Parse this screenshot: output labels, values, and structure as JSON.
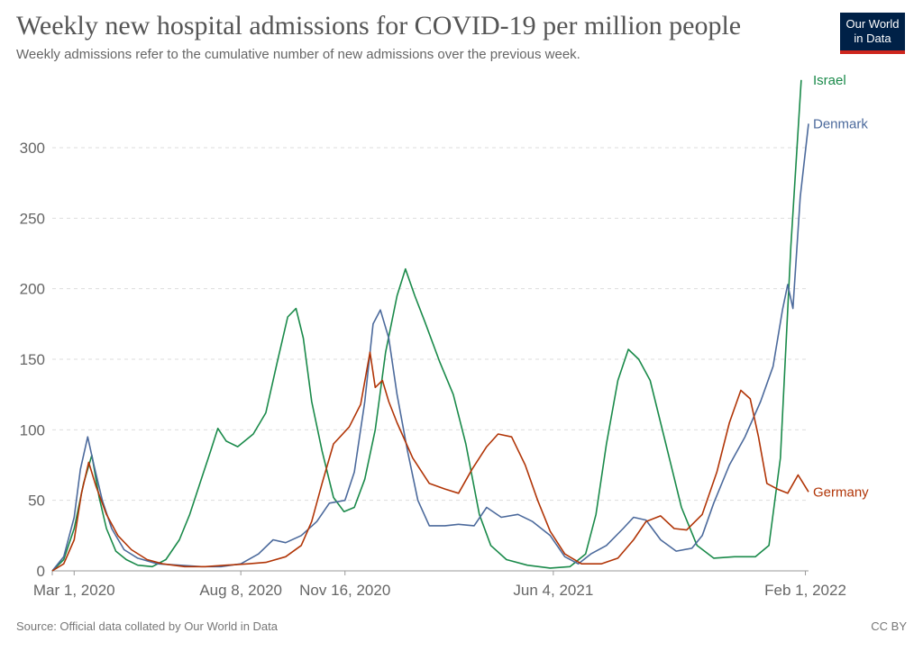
{
  "header": {
    "title": "Weekly new hospital admissions for COVID-19 per million people",
    "subtitle": "Weekly admissions refer to the cumulative number of new admissions over the previous week."
  },
  "logo": {
    "line1": "Our World",
    "line2": "in Data",
    "bg_color": "#002147",
    "accent_color": "#ce261e"
  },
  "footer": {
    "source": "Source: Official data collated by Our World in Data",
    "license": "CC BY"
  },
  "chart_data": {
    "type": "line",
    "title": "Weekly new hospital admissions for COVID-19 per million people",
    "subtitle": "Weekly admissions refer to the cumulative number of new admissions over the previous week.",
    "x_axis": {
      "type": "date",
      "range": [
        "2020-02-09",
        "2022-02-04"
      ],
      "ticks": [
        {
          "date": "2020-03-01",
          "label": "Mar 1, 2020"
        },
        {
          "date": "2020-08-08",
          "label": "Aug 8, 2020"
        },
        {
          "date": "2020-11-16",
          "label": "Nov 16, 2020"
        },
        {
          "date": "2021-06-04",
          "label": "Jun 4, 2021"
        },
        {
          "date": "2022-02-01",
          "label": "Feb 1, 2022"
        }
      ]
    },
    "y_axis": {
      "range": [
        0,
        350
      ],
      "ticks": [
        0,
        50,
        100,
        150,
        200,
        250,
        300
      ],
      "grid": true
    },
    "series": [
      {
        "name": "Israel",
        "color": "#1a8a4a",
        "points": [
          [
            "2020-02-09",
            0
          ],
          [
            "2020-02-20",
            8
          ],
          [
            "2020-03-01",
            30
          ],
          [
            "2020-03-10",
            62
          ],
          [
            "2020-03-18",
            82
          ],
          [
            "2020-03-25",
            52
          ],
          [
            "2020-04-01",
            30
          ],
          [
            "2020-04-10",
            14
          ],
          [
            "2020-04-20",
            8
          ],
          [
            "2020-05-01",
            4
          ],
          [
            "2020-05-15",
            3
          ],
          [
            "2020-05-28",
            8
          ],
          [
            "2020-06-10",
            22
          ],
          [
            "2020-06-20",
            40
          ],
          [
            "2020-07-01",
            65
          ],
          [
            "2020-07-10",
            85
          ],
          [
            "2020-07-17",
            101
          ],
          [
            "2020-07-25",
            92
          ],
          [
            "2020-08-05",
            88
          ],
          [
            "2020-08-20",
            97
          ],
          [
            "2020-09-01",
            112
          ],
          [
            "2020-09-12",
            148
          ],
          [
            "2020-09-22",
            180
          ],
          [
            "2020-09-30",
            186
          ],
          [
            "2020-10-07",
            165
          ],
          [
            "2020-10-15",
            120
          ],
          [
            "2020-10-25",
            85
          ],
          [
            "2020-11-05",
            52
          ],
          [
            "2020-11-15",
            42
          ],
          [
            "2020-11-25",
            45
          ],
          [
            "2020-12-05",
            65
          ],
          [
            "2020-12-15",
            100
          ],
          [
            "2020-12-25",
            155
          ],
          [
            "2021-01-05",
            195
          ],
          [
            "2021-01-13",
            214
          ],
          [
            "2021-01-22",
            195
          ],
          [
            "2021-02-01",
            176
          ],
          [
            "2021-02-15",
            148
          ],
          [
            "2021-02-28",
            125
          ],
          [
            "2021-03-12",
            90
          ],
          [
            "2021-03-25",
            40
          ],
          [
            "2021-04-05",
            18
          ],
          [
            "2021-04-20",
            8
          ],
          [
            "2021-05-10",
            4
          ],
          [
            "2021-06-01",
            2
          ],
          [
            "2021-06-20",
            3
          ],
          [
            "2021-07-05",
            12
          ],
          [
            "2021-07-15",
            40
          ],
          [
            "2021-07-25",
            90
          ],
          [
            "2021-08-05",
            135
          ],
          [
            "2021-08-15",
            157
          ],
          [
            "2021-08-25",
            150
          ],
          [
            "2021-09-05",
            135
          ],
          [
            "2021-09-20",
            90
          ],
          [
            "2021-10-05",
            45
          ],
          [
            "2021-10-20",
            18
          ],
          [
            "2021-11-05",
            9
          ],
          [
            "2021-11-25",
            10
          ],
          [
            "2021-12-15",
            10
          ],
          [
            "2021-12-28",
            18
          ],
          [
            "2022-01-08",
            80
          ],
          [
            "2022-01-18",
            230
          ],
          [
            "2022-01-28",
            348
          ]
        ]
      },
      {
        "name": "Denmark",
        "color": "#4c6a9c",
        "points": [
          [
            "2020-02-09",
            0
          ],
          [
            "2020-02-20",
            10
          ],
          [
            "2020-03-01",
            38
          ],
          [
            "2020-03-07",
            72
          ],
          [
            "2020-03-14",
            95
          ],
          [
            "2020-03-20",
            75
          ],
          [
            "2020-03-28",
            50
          ],
          [
            "2020-04-06",
            30
          ],
          [
            "2020-04-18",
            15
          ],
          [
            "2020-05-01",
            9
          ],
          [
            "2020-05-20",
            5
          ],
          [
            "2020-06-10",
            4
          ],
          [
            "2020-07-01",
            3
          ],
          [
            "2020-07-20",
            3
          ],
          [
            "2020-08-08",
            5
          ],
          [
            "2020-08-25",
            12
          ],
          [
            "2020-09-08",
            22
          ],
          [
            "2020-09-20",
            20
          ],
          [
            "2020-10-05",
            25
          ],
          [
            "2020-10-20",
            35
          ],
          [
            "2020-11-01",
            48
          ],
          [
            "2020-11-16",
            50
          ],
          [
            "2020-11-25",
            70
          ],
          [
            "2020-12-05",
            120
          ],
          [
            "2020-12-13",
            175
          ],
          [
            "2020-12-20",
            185
          ],
          [
            "2020-12-28",
            165
          ],
          [
            "2021-01-05",
            125
          ],
          [
            "2021-01-15",
            85
          ],
          [
            "2021-01-25",
            50
          ],
          [
            "2021-02-05",
            32
          ],
          [
            "2021-02-20",
            32
          ],
          [
            "2021-03-05",
            33
          ],
          [
            "2021-03-20",
            32
          ],
          [
            "2021-04-01",
            45
          ],
          [
            "2021-04-15",
            38
          ],
          [
            "2021-05-01",
            40
          ],
          [
            "2021-05-15",
            35
          ],
          [
            "2021-06-01",
            25
          ],
          [
            "2021-06-15",
            10
          ],
          [
            "2021-06-28",
            5
          ],
          [
            "2021-07-10",
            12
          ],
          [
            "2021-07-25",
            18
          ],
          [
            "2021-08-10",
            30
          ],
          [
            "2021-08-20",
            38
          ],
          [
            "2021-09-01",
            36
          ],
          [
            "2021-09-15",
            22
          ],
          [
            "2021-09-30",
            14
          ],
          [
            "2021-10-15",
            16
          ],
          [
            "2021-10-25",
            25
          ],
          [
            "2021-11-05",
            48
          ],
          [
            "2021-11-20",
            75
          ],
          [
            "2021-12-05",
            95
          ],
          [
            "2021-12-20",
            120
          ],
          [
            "2022-01-01",
            145
          ],
          [
            "2022-01-10",
            185
          ],
          [
            "2022-01-15",
            203
          ],
          [
            "2022-01-20",
            186
          ],
          [
            "2022-01-27",
            265
          ],
          [
            "2022-02-04",
            317
          ]
        ]
      },
      {
        "name": "Germany",
        "color": "#b13507",
        "points": [
          [
            "2020-02-09",
            0
          ],
          [
            "2020-02-20",
            5
          ],
          [
            "2020-03-01",
            22
          ],
          [
            "2020-03-08",
            55
          ],
          [
            "2020-03-15",
            77
          ],
          [
            "2020-03-22",
            60
          ],
          [
            "2020-04-01",
            40
          ],
          [
            "2020-04-12",
            25
          ],
          [
            "2020-04-25",
            15
          ],
          [
            "2020-05-10",
            8
          ],
          [
            "2020-05-25",
            5
          ],
          [
            "2020-06-15",
            3
          ],
          [
            "2020-07-05",
            3
          ],
          [
            "2020-07-25",
            4
          ],
          [
            "2020-08-15",
            5
          ],
          [
            "2020-09-01",
            6
          ],
          [
            "2020-09-20",
            10
          ],
          [
            "2020-10-05",
            18
          ],
          [
            "2020-10-15",
            35
          ],
          [
            "2020-10-25",
            62
          ],
          [
            "2020-11-05",
            90
          ],
          [
            "2020-11-20",
            102
          ],
          [
            "2020-12-01",
            118
          ],
          [
            "2020-12-10",
            155
          ],
          [
            "2020-12-15",
            130
          ],
          [
            "2020-12-22",
            135
          ],
          [
            "2020-12-28",
            120
          ],
          [
            "2021-01-05",
            105
          ],
          [
            "2021-01-20",
            80
          ],
          [
            "2021-02-05",
            62
          ],
          [
            "2021-02-20",
            58
          ],
          [
            "2021-03-05",
            55
          ],
          [
            "2021-03-18",
            72
          ],
          [
            "2021-04-01",
            88
          ],
          [
            "2021-04-12",
            97
          ],
          [
            "2021-04-25",
            95
          ],
          [
            "2021-05-08",
            75
          ],
          [
            "2021-05-20",
            50
          ],
          [
            "2021-06-01",
            28
          ],
          [
            "2021-06-15",
            12
          ],
          [
            "2021-07-01",
            5
          ],
          [
            "2021-07-20",
            5
          ],
          [
            "2021-08-05",
            9
          ],
          [
            "2021-08-20",
            22
          ],
          [
            "2021-09-01",
            35
          ],
          [
            "2021-09-15",
            39
          ],
          [
            "2021-09-28",
            30
          ],
          [
            "2021-10-10",
            29
          ],
          [
            "2021-10-25",
            40
          ],
          [
            "2021-11-08",
            70
          ],
          [
            "2021-11-20",
            105
          ],
          [
            "2021-12-01",
            128
          ],
          [
            "2021-12-10",
            122
          ],
          [
            "2021-12-18",
            95
          ],
          [
            "2021-12-26",
            62
          ],
          [
            "2022-01-05",
            58
          ],
          [
            "2022-01-15",
            55
          ],
          [
            "2022-01-25",
            68
          ],
          [
            "2022-02-04",
            56
          ]
        ]
      }
    ]
  }
}
